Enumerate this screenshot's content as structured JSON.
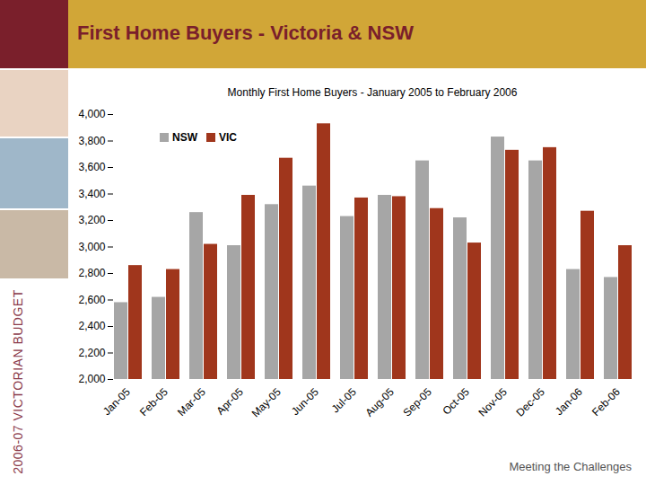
{
  "chart_data": {
    "type": "bar",
    "title": "First Home Buyers - Victoria & NSW",
    "subtitle": "Monthly First Home Buyers - January 2005 to February 2006",
    "annotations": [
      "2006-07 VICTORIAN BUDGET",
      "Meeting the Challenges"
    ],
    "categories": [
      "Jan-05",
      "Feb-05",
      "Mar-05",
      "Apr-05",
      "May-05",
      "Jun-05",
      "Jul-05",
      "Aug-05",
      "Sep-05",
      "Oct-05",
      "Nov-05",
      "Dec-05",
      "Jan-06",
      "Feb-06"
    ],
    "series": [
      {
        "name": "NSW",
        "color": "#a6a6a6",
        "values": [
          2580,
          2620,
          3260,
          3010,
          3320,
          3460,
          3230,
          3390,
          3650,
          3220,
          3830,
          3650,
          2830,
          2770
        ]
      },
      {
        "name": "VIC",
        "color": "#a0361c",
        "values": [
          2860,
          2830,
          3020,
          3390,
          3670,
          3930,
          3370,
          3380,
          3290,
          3030,
          3730,
          3750,
          3270,
          3010
        ]
      }
    ],
    "ylim": [
      2000,
      4000
    ],
    "yticks": [
      {
        "value": 2000,
        "label": "2,000"
      },
      {
        "value": 2200,
        "label": "2,200"
      },
      {
        "value": 2400,
        "label": "2,400"
      },
      {
        "value": 2600,
        "label": "2,600"
      },
      {
        "value": 2800,
        "label": "2,800"
      },
      {
        "value": 3000,
        "label": "3,000"
      },
      {
        "value": 3200,
        "label": "3,200"
      },
      {
        "value": 3400,
        "label": "3,400"
      },
      {
        "value": 3600,
        "label": "3,600"
      },
      {
        "value": 3800,
        "label": "3,800"
      },
      {
        "value": 4000,
        "label": "4,000"
      }
    ],
    "grid": false,
    "legend": "top-left"
  }
}
